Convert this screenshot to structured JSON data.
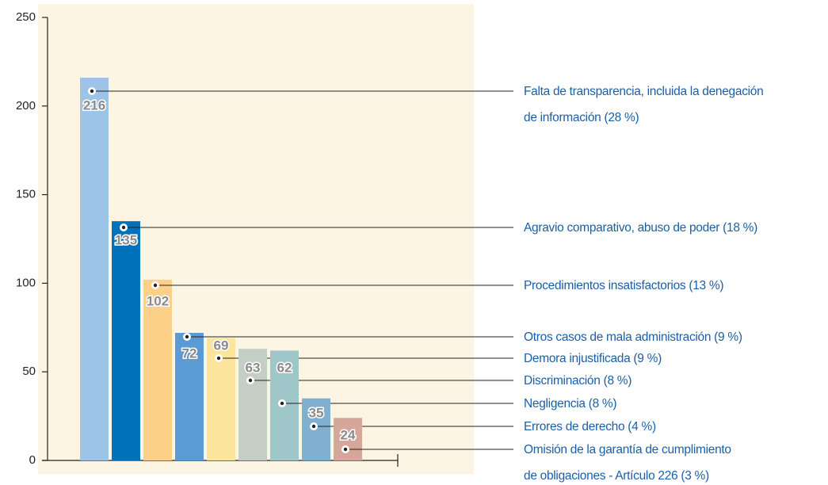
{
  "chart_data": {
    "type": "bar",
    "categories": [
      "Falta de transparencia, incluida la denegación\nde información (28 %)",
      "Agravio comparativo, abuso de poder (18 %)",
      "Procedimientos insatisfactorios (13 %)",
      "Otros casos de mala administración (9 %)",
      "Demora injustificada (9 %)",
      "Discriminación (8 %)",
      "Negligencia (8 %)",
      "Errores de derecho (4 %)",
      "Omisión de la garantía de cumplimiento\nde obligaciones - Artículo 226 (3 %)"
    ],
    "values": [
      216,
      135,
      102,
      72,
      69,
      63,
      62,
      35,
      24
    ],
    "colors": [
      "#9dc3e6",
      "#0072bb",
      "#fdd08a",
      "#5b9bd5",
      "#fde49c",
      "#c5cec5",
      "#9fc7c9",
      "#7fb0d0",
      "#d4a79a"
    ],
    "ylim": [
      0,
      250
    ],
    "yticks": [
      0,
      50,
      100,
      150,
      200,
      250
    ]
  }
}
